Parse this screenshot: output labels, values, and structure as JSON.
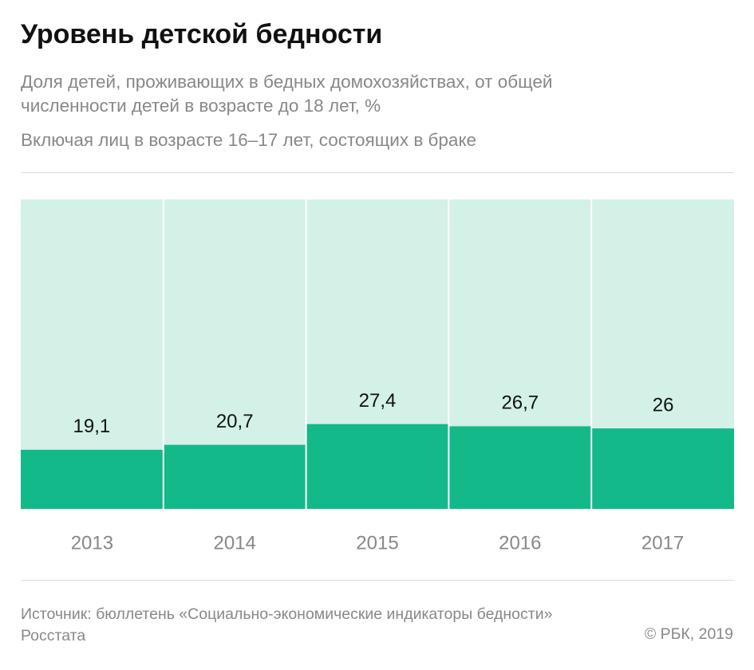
{
  "chart_data": {
    "type": "bar",
    "title": "Уровень детской бедности",
    "subtitle": "Доля детей, проживающих в бедных домохозяйствах, от общей численности детей в возрасте до 18 лет, %",
    "note": "Включая лиц в возрасте 16–17 лет, состоящих в браке",
    "categories": [
      "2013",
      "2014",
      "2015",
      "2016",
      "2017"
    ],
    "values": [
      19.1,
      20.7,
      27.4,
      26.7,
      26
    ],
    "value_labels": [
      "19,1",
      "20,7",
      "27,4",
      "26,7",
      "26"
    ],
    "color": "#14b98a",
    "background_color": "#d3f1e7",
    "ylim": [
      0,
      100
    ],
    "source": "Источник: бюллетень «Социально-экономические индикаторы бедности» Росстата",
    "copyright": "© РБК, 2019"
  }
}
